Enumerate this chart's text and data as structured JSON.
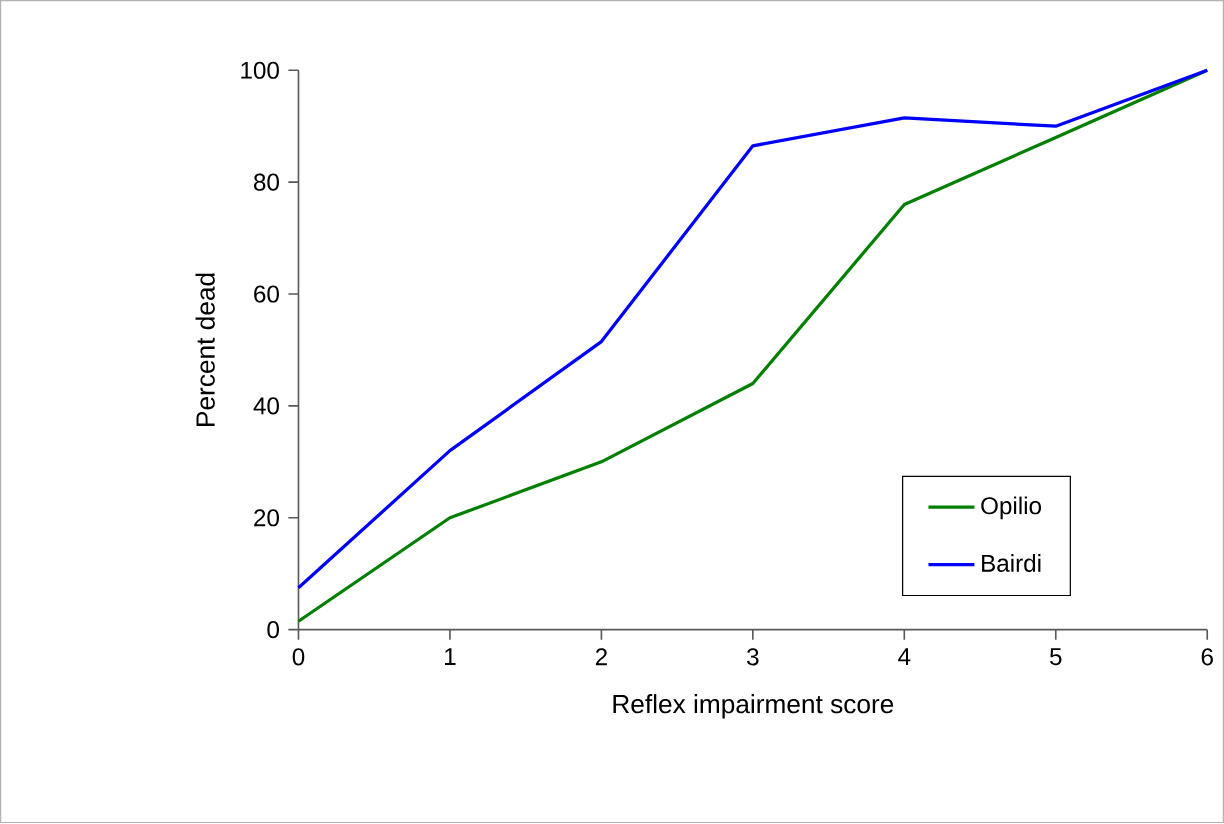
{
  "chart_data": {
    "type": "line",
    "xlabel": "Reflex impairment score",
    "ylabel": "Percent dead",
    "x": [
      0,
      1,
      2,
      3,
      4,
      5,
      6
    ],
    "series": [
      {
        "name": "Opilio",
        "color": "#008000",
        "values": [
          1.5,
          20,
          30,
          44,
          76,
          88,
          100
        ]
      },
      {
        "name": "Bairdi",
        "color": "#0000ff",
        "values": [
          7.5,
          32,
          51.5,
          86.5,
          91.5,
          90,
          100
        ]
      }
    ],
    "xlim": [
      0,
      6
    ],
    "xticks": [
      0,
      1,
      2,
      3,
      4,
      5,
      6
    ],
    "ylim": [
      0,
      100
    ],
    "yticks": [
      0,
      20,
      40,
      60,
      80,
      100
    ],
    "grid": false,
    "legend": "bottom right",
    "marker": "none",
    "line_style": "solid"
  }
}
